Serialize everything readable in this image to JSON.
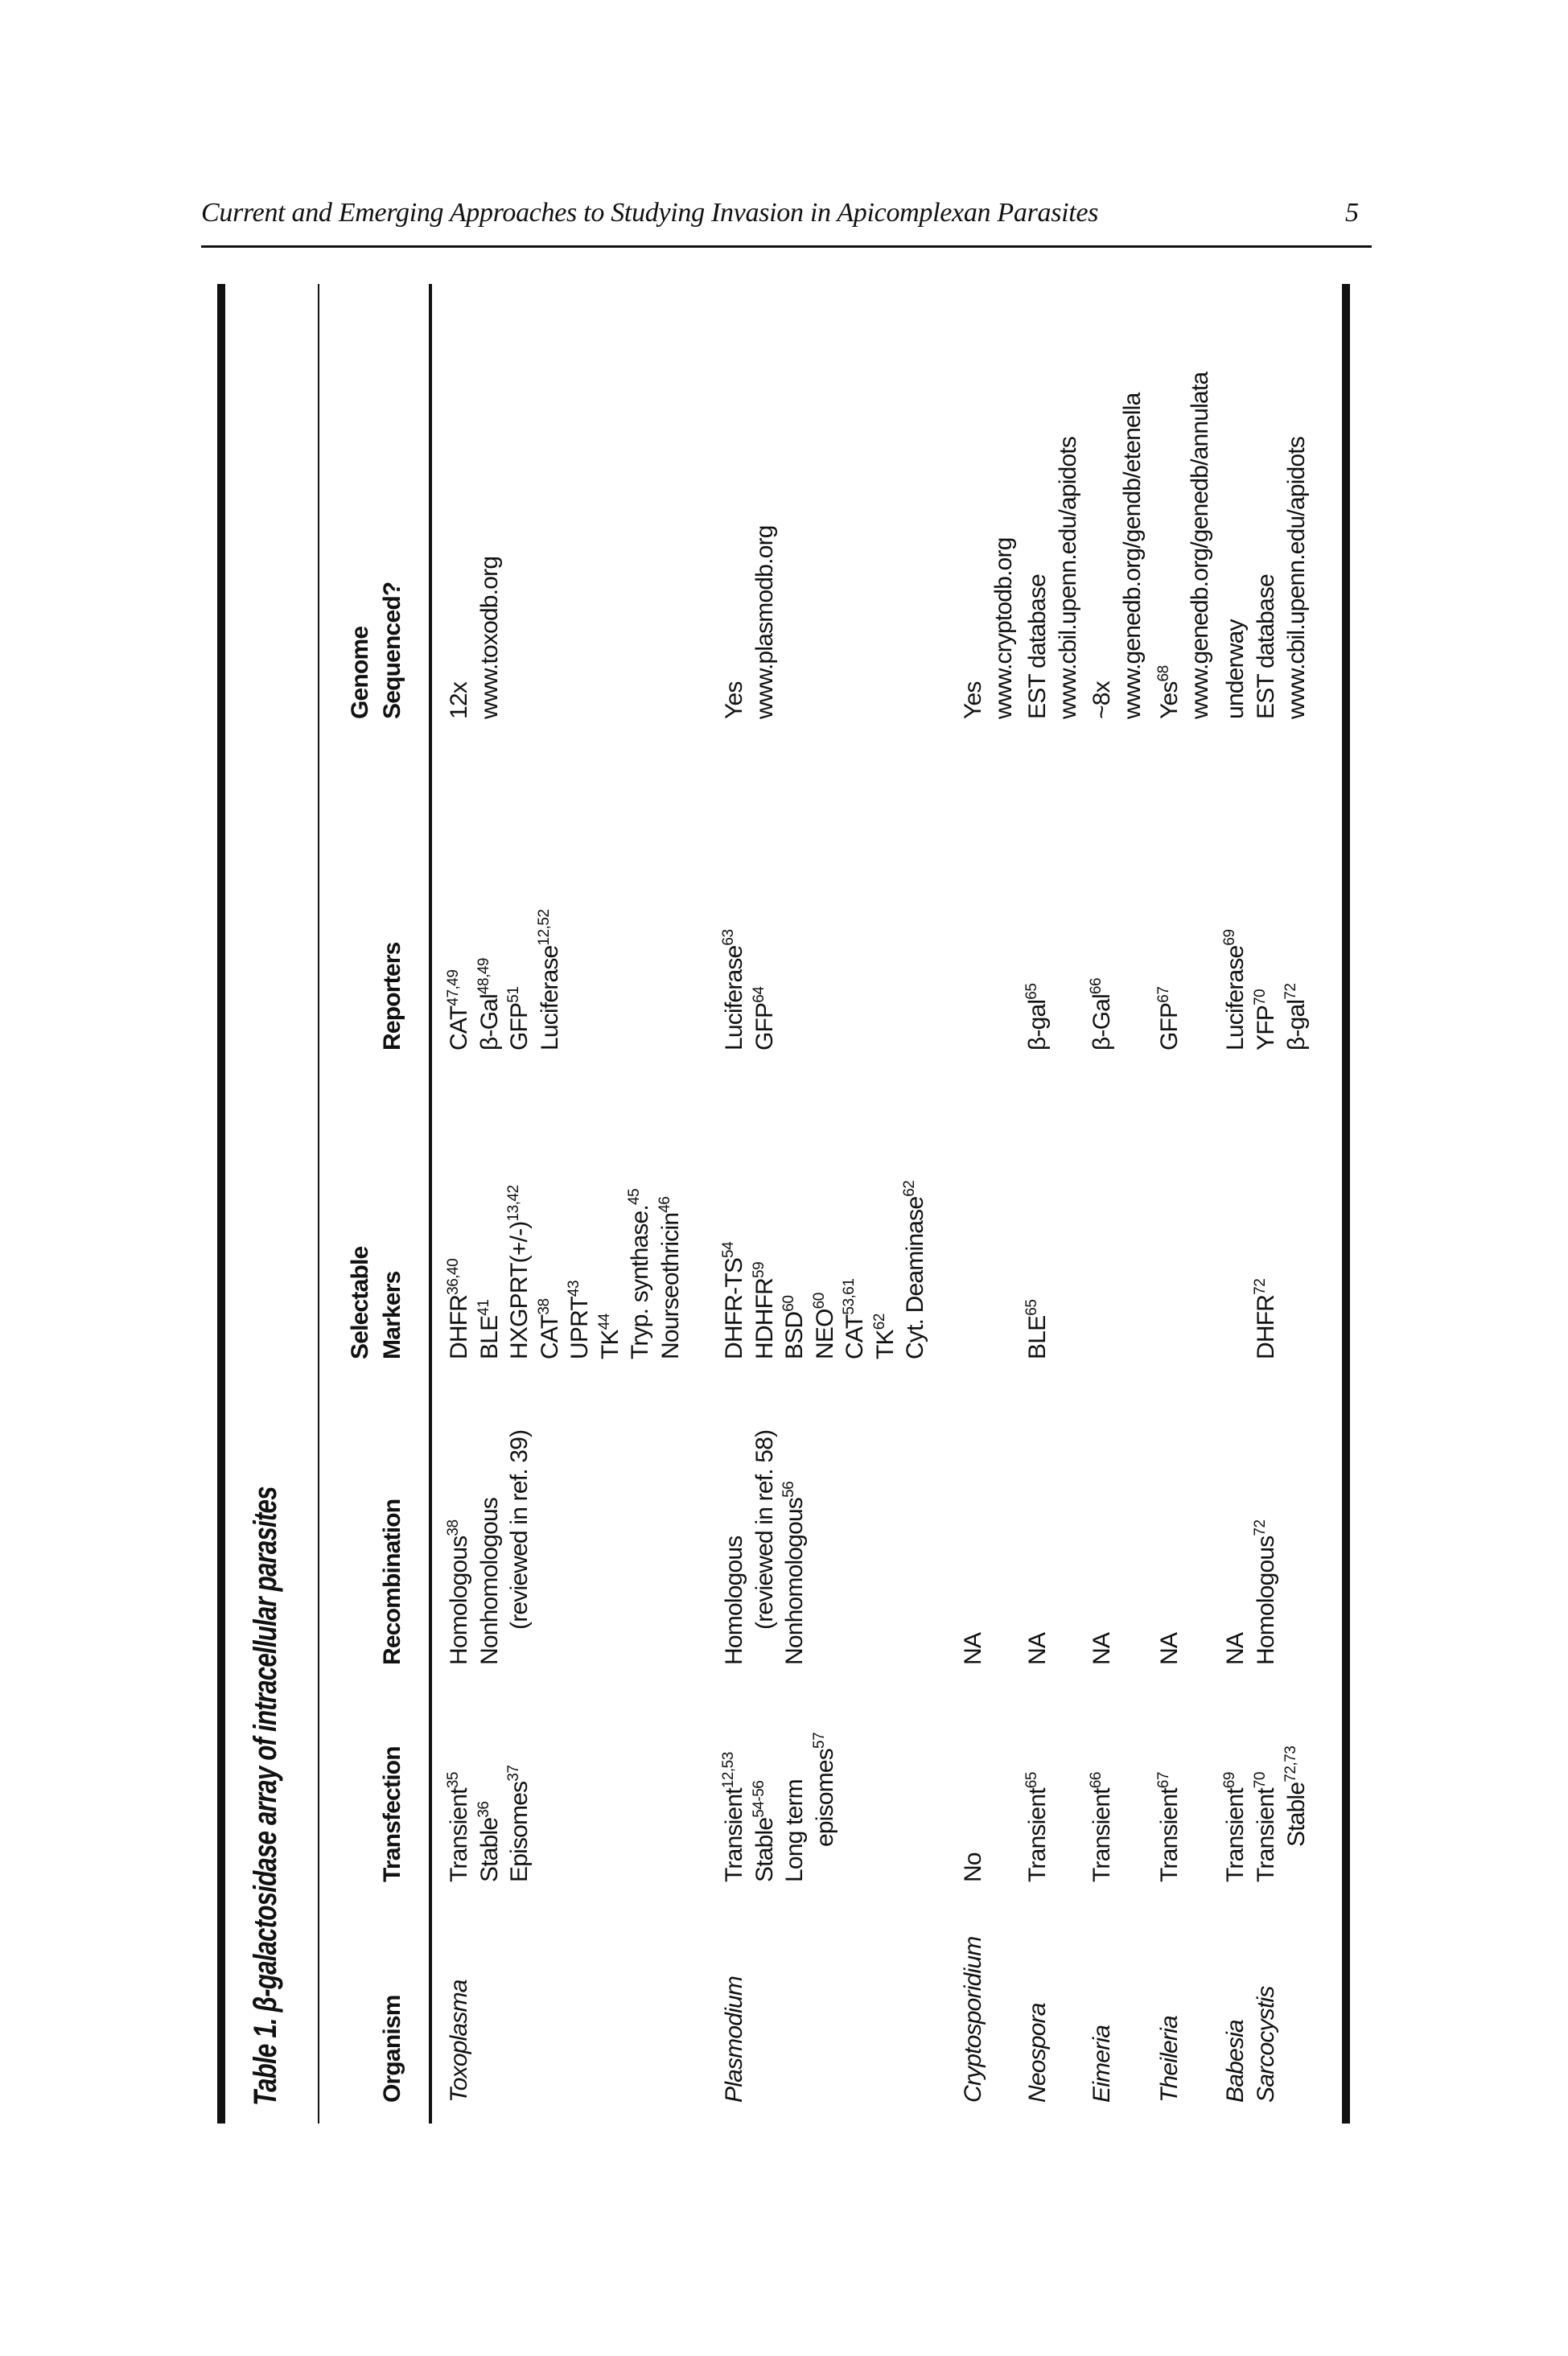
{
  "running_head": {
    "title": "Current and Emerging Approaches to Studying Invasion in Apicomplexan Parasites",
    "page_number": "5"
  },
  "table": {
    "caption": "Table 1.  β-galactosidase array of intracellular parasites",
    "headers": {
      "organism": [
        "",
        "Organism"
      ],
      "transfection": [
        "",
        "Transfection"
      ],
      "recombination": [
        "",
        "Recombination"
      ],
      "markers": [
        "Selectable",
        "Markers"
      ],
      "reporters": [
        "",
        "Reporters"
      ],
      "genome": [
        "Genome",
        "Sequenced?"
      ]
    },
    "rows": [
      {
        "organism": "Toxoplasma",
        "transfection": [
          {
            "t": "Transient",
            "sup": "35"
          },
          {
            "t": "Stable",
            "sup": "36"
          },
          {
            "t": "Episomes",
            "sup": "37"
          }
        ],
        "recombination": [
          {
            "t": "Homologous",
            "sup": "38"
          },
          {
            "t": "Nonhomologous"
          },
          {
            "t": "(reviewed in ref. 39)",
            "indent": true
          }
        ],
        "markers": [
          {
            "t": "DHFR",
            "sup": "36,40"
          },
          {
            "t": "BLE",
            "sup": "41"
          },
          {
            "t": "HXGPRT(+/-)",
            "sup": "13,42"
          },
          {
            "t": "CAT",
            "sup": "38"
          },
          {
            "t": "UPRT",
            "sup": "43"
          },
          {
            "t": "TK",
            "sup": "44"
          },
          {
            "t": "Tryp. synthase.",
            "sup": "45"
          },
          {
            "t": "Nourseothricin",
            "sup": "46"
          }
        ],
        "reporters": [
          {
            "t": "CAT",
            "sup": "47,49"
          },
          {
            "t": "β-Gal",
            "sup": "48,49"
          },
          {
            "t": "GFP",
            "sup": "51"
          },
          {
            "t": "Luciferase",
            "sup": "12,52"
          }
        ],
        "genome": [
          {
            "t": "12x"
          },
          {
            "t": "www.toxodb.org"
          }
        ]
      },
      {
        "organism": "Plasmodium",
        "transfection": [
          {
            "t": "Transient",
            "sup": "12,53"
          },
          {
            "t": "Stable",
            "sup": "54-56"
          },
          {
            "t": "Long term"
          },
          {
            "t": "episomes",
            "sup": "57",
            "indent": true
          }
        ],
        "recombination": [
          {
            "t": "Homologous"
          },
          {
            "t": "(reviewed in ref. 58)",
            "indent": true
          },
          {
            "t": "Nonhomologous",
            "sup": "56"
          }
        ],
        "markers": [
          {
            "t": "DHFR-TS",
            "sup": "54"
          },
          {
            "t": "HDHFR",
            "sup": "59"
          },
          {
            "t": "BSD",
            "sup": "60"
          },
          {
            "t": "NEO",
            "sup": "60"
          },
          {
            "t": "CAT",
            "sup": "53,61"
          },
          {
            "t": "TK",
            "sup": "62"
          },
          {
            "t": "Cyt. Deaminase",
            "sup": "62"
          }
        ],
        "reporters": [
          {
            "t": "Luciferase",
            "sup": "63"
          },
          {
            "t": "GFP",
            "sup": "64"
          }
        ],
        "genome": [
          {
            "t": "Yes"
          },
          {
            "t": "www.plasmodb.org"
          }
        ]
      },
      {
        "organism": "Cryptosporidium",
        "transfection": [
          {
            "t": "No"
          }
        ],
        "recombination": [
          {
            "t": "NA"
          }
        ],
        "markers": [],
        "reporters": [],
        "genome": [
          {
            "t": "Yes"
          },
          {
            "t": "www.cryptodb.org"
          }
        ]
      },
      {
        "organism": "Neospora",
        "transfection": [
          {
            "t": "Transient",
            "sup": "65"
          }
        ],
        "recombination": [
          {
            "t": "NA"
          }
        ],
        "markers": [
          {
            "t": "BLE",
            "sup": "65"
          }
        ],
        "reporters": [
          {
            "t": "β-gal",
            "sup": "65"
          }
        ],
        "genome": [
          {
            "t": "EST database"
          },
          {
            "t": "www.cbil.upenn.edu/apidots"
          }
        ]
      },
      {
        "organism": "Eimeria",
        "transfection": [
          {
            "t": "Transient",
            "sup": "66"
          }
        ],
        "recombination": [
          {
            "t": "NA"
          }
        ],
        "markers": [],
        "reporters": [
          {
            "t": "β-Gal",
            "sup": "66"
          }
        ],
        "genome": [
          {
            "t": "~8x"
          },
          {
            "t": "www.genedb.org/gendb/etenella"
          }
        ]
      },
      {
        "organism": "Theileria",
        "transfection": [
          {
            "t": "Transient",
            "sup": "67"
          }
        ],
        "recombination": [
          {
            "t": "NA"
          }
        ],
        "markers": [],
        "reporters": [
          {
            "t": "GFP",
            "sup": "67"
          }
        ],
        "genome": [
          {
            "t": "Yes",
            "sup": "68"
          },
          {
            "t": "www.genedb.org/genedb/annulata"
          }
        ]
      },
      {
        "organism": "Babesia",
        "transfection": [
          {
            "t": "Transient",
            "sup": "69"
          }
        ],
        "recombination": [
          {
            "t": "NA"
          }
        ],
        "markers": [],
        "reporters": [
          {
            "t": "Luciferase",
            "sup": "69"
          }
        ],
        "genome": [
          {
            "t": "underway"
          }
        ]
      },
      {
        "organism": "Sarcocystis",
        "transfection": [
          {
            "t": "Transient",
            "sup": "70"
          },
          {
            "t": "Stable",
            "sup": "72,73",
            "indent": true
          }
        ],
        "recombination": [
          {
            "t": "Homologous",
            "sup": "72"
          }
        ],
        "markers": [
          {
            "t": "DHFR",
            "sup": "72"
          }
        ],
        "reporters": [
          {
            "t": "YFP",
            "sup": "70"
          },
          {
            "t": "β-gal",
            "sup": "72"
          }
        ],
        "genome": [
          {
            "t": "EST database"
          },
          {
            "t": "www.cbil.upenn.edu/apidots"
          }
        ]
      }
    ]
  }
}
